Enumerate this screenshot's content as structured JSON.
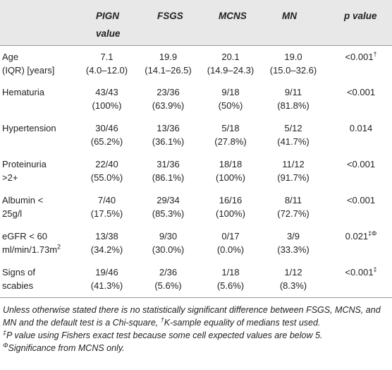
{
  "table": {
    "columns": [
      "PIGN value",
      "FSGS",
      "MCNS",
      "MN",
      "p value"
    ],
    "rows": [
      {
        "label": [
          "Age",
          "(IQR) [years]"
        ],
        "cells": [
          [
            "7.1",
            "(4.0–12.0)"
          ],
          [
            "19.9",
            "(14.1–26.5)"
          ],
          [
            "20.1",
            "(14.9–24.3)"
          ],
          [
            "19.0",
            "(15.0–32.6)"
          ]
        ],
        "p": "<0.001",
        "p_sup": "†"
      },
      {
        "label": [
          "Hematuria"
        ],
        "cells": [
          [
            "43/43",
            "(100%)"
          ],
          [
            "23/36",
            "(63.9%)"
          ],
          [
            "9/18",
            "(50%)"
          ],
          [
            "9/11",
            "(81.8%)"
          ]
        ],
        "p": "<0.001"
      },
      {
        "label": [
          "Hypertension"
        ],
        "cells": [
          [
            "30/46",
            "(65.2%)"
          ],
          [
            "13/36",
            "(36.1%)"
          ],
          [
            "5/18",
            "(27.8%)"
          ],
          [
            "5/12",
            "(41.7%)"
          ]
        ],
        "p": "0.014"
      },
      {
        "label": [
          "Proteinuria",
          ">2+"
        ],
        "cells": [
          [
            "22/40",
            "(55.0%)"
          ],
          [
            "31/36",
            "(86.1%)"
          ],
          [
            "18/18",
            "(100%)"
          ],
          [
            "11/12",
            "(91.7%)"
          ]
        ],
        "p": "<0.001"
      },
      {
        "label": [
          "Albumin <",
          "25g/l"
        ],
        "cells": [
          [
            "7/40",
            "(17.5%)"
          ],
          [
            "29/34",
            "(85.3%)"
          ],
          [
            "16/16",
            "(100%)"
          ],
          [
            "8/11",
            "(72.7%)"
          ]
        ],
        "p": "<0.001"
      },
      {
        "label": [
          "eGFR < 60",
          "ml/min/1.73m"
        ],
        "label_sup": "2",
        "cells": [
          [
            "13/38",
            "(34.2%)"
          ],
          [
            "9/30",
            "(30.0%)"
          ],
          [
            "0/17",
            "(0.0%)"
          ],
          [
            "3/9",
            "(33.3%)"
          ]
        ],
        "p": "0.021",
        "p_sup": "‡Φ"
      },
      {
        "label": [
          "Signs of",
          "scabies"
        ],
        "cells": [
          [
            "19/46",
            "(41.3%)"
          ],
          [
            "2/36",
            "(5.6%)"
          ],
          [
            "1/18",
            "(5.6%)"
          ],
          [
            "1/12",
            "(8.3%)"
          ]
        ],
        "p": "<0.001",
        "p_sup": "‡"
      }
    ]
  },
  "notes": [
    [
      {
        "text": "Unless otherwise stated there is no statistically significant difference between FSGS, MCNS, and MN and the default test is a Chi-square, "
      },
      {
        "sup": "†"
      },
      {
        "text": "K-sample equality of medians test used."
      }
    ],
    [
      {
        "sup": "‡"
      },
      {
        "text": "P value using Fishers exact test because some cell expected values are below 5."
      }
    ],
    [
      {
        "sup": "Φ"
      },
      {
        "text": "Significance from MCNS only."
      }
    ]
  ]
}
